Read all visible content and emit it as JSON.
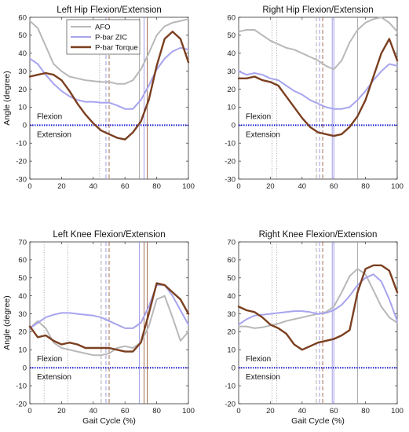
{
  "colors": {
    "afo": "#b8b8b8",
    "zic": "#a7a4ee",
    "torque": "#7b3f20",
    "zero_line": "#1a1ad0",
    "vline_afo": "#9a9a9a",
    "vline_zic": "#8a86e0",
    "vline_torque": "#8b4a2a"
  },
  "legend": {
    "placement": "top-left of first panel",
    "entries": [
      "AFO",
      "P-bar ZIC",
      "P-bar Torque"
    ]
  },
  "chart_data": [
    {
      "type": "line",
      "title": "Left Hip Flexion/Extension",
      "xlabel": "",
      "ylabel": "Angle (degree)",
      "xlim": [
        0,
        100
      ],
      "ylim": [
        -30,
        60
      ],
      "xticks": [
        "0",
        "20",
        "40",
        "60",
        "80",
        "100"
      ],
      "yticks": [
        "-30",
        "-20",
        "-10",
        "0",
        "10",
        "20",
        "30",
        "40",
        "50",
        "60"
      ],
      "annotations": [
        "Flexion",
        "Extension"
      ],
      "vlines": [
        {
          "x": 44,
          "series": "afo",
          "style": "dotted"
        },
        {
          "x": 48,
          "series": "zic",
          "style": "dashed"
        },
        {
          "x": 50,
          "series": "torque",
          "style": "dashed"
        },
        {
          "x": 69,
          "series": "afo",
          "style": "solid"
        },
        {
          "x": 72,
          "series": "zic",
          "style": "solid"
        },
        {
          "x": 74,
          "series": "torque",
          "style": "solid"
        }
      ],
      "series": [
        {
          "name": "AFO",
          "key": "afo",
          "x": [
            0,
            5,
            10,
            15,
            20,
            25,
            30,
            35,
            40,
            45,
            50,
            55,
            60,
            65,
            70,
            75,
            80,
            85,
            90,
            95,
            100
          ],
          "y": [
            58,
            54,
            44,
            34,
            30,
            27,
            26,
            25,
            24.5,
            24,
            24,
            23,
            23,
            25,
            31,
            40,
            50,
            55,
            57,
            58,
            59
          ]
        },
        {
          "name": "P-bar ZIC",
          "key": "zic",
          "x": [
            0,
            5,
            10,
            15,
            20,
            25,
            30,
            35,
            40,
            45,
            50,
            55,
            60,
            65,
            70,
            75,
            80,
            85,
            90,
            95,
            100
          ],
          "y": [
            37,
            34,
            28,
            23,
            19,
            16,
            14,
            13,
            13,
            12.5,
            12.5,
            11,
            9,
            9,
            14,
            22,
            31,
            37,
            41,
            43,
            42
          ]
        },
        {
          "name": "P-bar Torque",
          "key": "torque",
          "x": [
            0,
            5,
            10,
            15,
            20,
            25,
            30,
            35,
            40,
            45,
            50,
            55,
            60,
            65,
            70,
            75,
            80,
            85,
            90,
            95,
            100
          ],
          "y": [
            27,
            28,
            29,
            28,
            25,
            19,
            12,
            6,
            1,
            -3,
            -5,
            -7,
            -8,
            -4,
            2,
            14,
            33,
            48,
            52,
            48,
            35
          ]
        }
      ]
    },
    {
      "type": "line",
      "title": "Right Hip Flexion/Extension",
      "xlabel": "",
      "ylabel": "",
      "xlim": [
        0,
        100
      ],
      "ylim": [
        -30,
        60
      ],
      "xticks": [
        "0",
        "20",
        "40",
        "60",
        "80",
        "100"
      ],
      "yticks": [
        "-30",
        "-20",
        "-10",
        "0",
        "10",
        "20",
        "30",
        "40",
        "50",
        "60"
      ],
      "annotations": [
        "Flexion",
        "Extension"
      ],
      "vlines": [
        {
          "x": 21,
          "series": "afo",
          "style": "dotted"
        },
        {
          "x": 24,
          "series": "afo",
          "style": "dotted"
        },
        {
          "x": 49,
          "series": "afo",
          "style": "dashed"
        },
        {
          "x": 51,
          "series": "zic",
          "style": "dashed"
        },
        {
          "x": 53,
          "series": "torque",
          "style": "dashed"
        },
        {
          "x": 59,
          "series": "zic",
          "style": "solid"
        },
        {
          "x": 60,
          "series": "zic",
          "style": "solid"
        },
        {
          "x": 75,
          "series": "afo",
          "style": "solid"
        }
      ],
      "series": [
        {
          "name": "AFO",
          "key": "afo",
          "x": [
            0,
            5,
            10,
            15,
            20,
            25,
            30,
            35,
            40,
            45,
            50,
            55,
            60,
            65,
            70,
            75,
            80,
            85,
            90,
            95,
            100
          ],
          "y": [
            52,
            53,
            53,
            50,
            47,
            45,
            43,
            42,
            40,
            38,
            36,
            33,
            31,
            36,
            46,
            53,
            57,
            59,
            60,
            57,
            52
          ]
        },
        {
          "name": "P-bar ZIC",
          "key": "zic",
          "x": [
            0,
            5,
            10,
            15,
            20,
            25,
            30,
            35,
            40,
            45,
            50,
            55,
            60,
            65,
            70,
            75,
            80,
            85,
            90,
            95,
            100
          ],
          "y": [
            30,
            28,
            29,
            28,
            26,
            25,
            22,
            19,
            17,
            14,
            12,
            10,
            9,
            9,
            10,
            14,
            19,
            25,
            30,
            34,
            33
          ]
        },
        {
          "name": "P-bar Torque",
          "key": "torque",
          "x": [
            0,
            5,
            10,
            15,
            20,
            25,
            30,
            35,
            40,
            45,
            50,
            55,
            60,
            65,
            70,
            75,
            80,
            85,
            90,
            95,
            100
          ],
          "y": [
            26,
            26,
            27,
            25,
            24,
            22,
            16,
            10,
            4,
            -1,
            -4,
            -5,
            -6,
            -5,
            -1,
            5,
            14,
            27,
            40,
            48,
            36
          ]
        }
      ]
    },
    {
      "type": "line",
      "title": "Left Knee Flexion/Extension",
      "xlabel": "Gait Cycle (%)",
      "ylabel": "Angle (degree)",
      "xlim": [
        0,
        100
      ],
      "ylim": [
        -20,
        70
      ],
      "xticks": [
        "0",
        "20",
        "40",
        "60",
        "80",
        "100"
      ],
      "yticks": [
        "-20",
        "-10",
        "0",
        "10",
        "20",
        "30",
        "40",
        "50",
        "60",
        "70"
      ],
      "annotations": [
        "Flexion",
        "Extension"
      ],
      "vlines": [
        {
          "x": 9,
          "series": "afo",
          "style": "dotted"
        },
        {
          "x": 24,
          "series": "afo",
          "style": "dotted"
        },
        {
          "x": 45,
          "series": "afo",
          "style": "dashed"
        },
        {
          "x": 48,
          "series": "zic",
          "style": "dashed"
        },
        {
          "x": 50,
          "series": "torque",
          "style": "dashed"
        },
        {
          "x": 69,
          "series": "zic",
          "style": "solid"
        },
        {
          "x": 72,
          "series": "torque",
          "style": "solid"
        },
        {
          "x": 74,
          "series": "torque",
          "style": "solid"
        }
      ],
      "series": [
        {
          "name": "AFO",
          "key": "afo",
          "x": [
            0,
            5,
            10,
            15,
            20,
            25,
            30,
            35,
            40,
            45,
            50,
            55,
            60,
            65,
            70,
            75,
            80,
            85,
            90,
            95,
            100
          ],
          "y": [
            22,
            26,
            22,
            14,
            11,
            10,
            9,
            8,
            7,
            7,
            8,
            11,
            12,
            11,
            14,
            23,
            38,
            40,
            28,
            15,
            20
          ]
        },
        {
          "name": "P-bar ZIC",
          "key": "zic",
          "x": [
            0,
            5,
            10,
            15,
            20,
            25,
            30,
            35,
            40,
            45,
            50,
            55,
            60,
            65,
            70,
            75,
            80,
            85,
            90,
            95,
            100
          ],
          "y": [
            22,
            25,
            28,
            29.5,
            30.5,
            30.5,
            30,
            29.5,
            29,
            28,
            26,
            24,
            22,
            22,
            25,
            34,
            46,
            46,
            40,
            32,
            24
          ]
        },
        {
          "name": "P-bar Torque",
          "key": "torque",
          "x": [
            0,
            5,
            10,
            15,
            20,
            25,
            30,
            35,
            40,
            45,
            50,
            55,
            60,
            65,
            70,
            75,
            80,
            85,
            90,
            95,
            100
          ],
          "y": [
            23,
            17,
            18,
            15,
            13,
            14,
            13,
            11,
            11,
            11,
            11,
            10,
            9,
            9,
            14,
            30,
            47,
            46,
            42,
            38,
            30
          ]
        }
      ]
    },
    {
      "type": "line",
      "title": "Right Knee Flexion/Extension",
      "xlabel": "Gait Cycle (%)",
      "ylabel": "",
      "xlim": [
        0,
        100
      ],
      "ylim": [
        -20,
        70
      ],
      "xticks": [
        "0",
        "20",
        "40",
        "60",
        "80",
        "100"
      ],
      "yticks": [
        "-20",
        "-10",
        "0",
        "10",
        "20",
        "30",
        "40",
        "50",
        "60",
        "70"
      ],
      "annotations": [
        "Flexion",
        "Extension"
      ],
      "vlines": [
        {
          "x": 21,
          "series": "afo",
          "style": "dotted"
        },
        {
          "x": 24,
          "series": "afo",
          "style": "dotted"
        },
        {
          "x": 49,
          "series": "afo",
          "style": "dashed"
        },
        {
          "x": 51,
          "series": "zic",
          "style": "dashed"
        },
        {
          "x": 53,
          "series": "torque",
          "style": "dashed"
        },
        {
          "x": 59,
          "series": "zic",
          "style": "solid"
        },
        {
          "x": 60,
          "series": "zic",
          "style": "solid"
        },
        {
          "x": 75,
          "series": "afo",
          "style": "solid"
        }
      ],
      "series": [
        {
          "name": "AFO",
          "key": "afo",
          "x": [
            0,
            5,
            10,
            15,
            20,
            25,
            30,
            35,
            40,
            45,
            50,
            55,
            60,
            65,
            70,
            75,
            80,
            85,
            90,
            95,
            100
          ],
          "y": [
            23,
            23,
            22,
            22.5,
            23.5,
            24.5,
            26,
            27,
            28,
            29,
            30,
            31,
            34,
            42,
            51,
            55,
            52,
            43,
            34,
            28,
            25
          ]
        },
        {
          "name": "P-bar ZIC",
          "key": "zic",
          "x": [
            0,
            5,
            10,
            15,
            20,
            25,
            30,
            35,
            40,
            45,
            50,
            55,
            60,
            65,
            70,
            75,
            80,
            85,
            90,
            95,
            100
          ],
          "y": [
            24,
            27,
            29,
            29.5,
            30,
            30.5,
            31,
            31.5,
            31.5,
            31,
            30,
            30.5,
            32,
            35,
            40,
            46,
            50,
            52,
            48,
            38,
            26
          ]
        },
        {
          "name": "P-bar Torque",
          "key": "torque",
          "x": [
            0,
            5,
            10,
            15,
            20,
            25,
            30,
            35,
            40,
            45,
            50,
            55,
            60,
            65,
            70,
            75,
            80,
            85,
            90,
            95,
            100
          ],
          "y": [
            34,
            32,
            31,
            28,
            24,
            22,
            19,
            13,
            10,
            12,
            14,
            15,
            16,
            18,
            21,
            42,
            55,
            57,
            57,
            54,
            42
          ]
        }
      ]
    }
  ]
}
